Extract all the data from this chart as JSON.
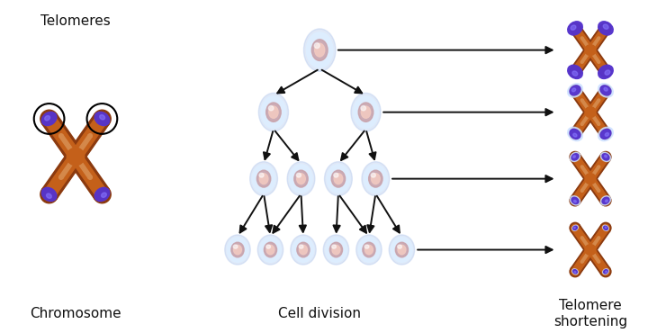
{
  "bg_color": "#ffffff",
  "chrom_brown_dark": "#8B3A0F",
  "chrom_brown_mid": "#C4601A",
  "chrom_brown_light": "#D4884A",
  "telomere_purple": "#5533CC",
  "telomere_purple_light": "#7766EE",
  "telomere_border": "#cce0ff",
  "cell_outer": "#b8ccee",
  "cell_body": "#ddeeff",
  "cell_nuc_outer": "#c8a0a8",
  "cell_nuc_inner": "#f0c8c0",
  "cell_highlight": "#ffffff",
  "arrow_color": "#111111",
  "text_color": "#111111",
  "circle_color": "#000000",
  "label_telomeres": "Telomeres",
  "label_chromosome": "Chromosome",
  "label_cell_division": "Cell division",
  "label_shortening": "Telomere\nshortening",
  "fontsize_label": 11,
  "figsize": [
    7.4,
    3.7
  ],
  "dpi": 100,
  "shortening_tel_scales": [
    1.0,
    0.72,
    0.48,
    0.28
  ]
}
